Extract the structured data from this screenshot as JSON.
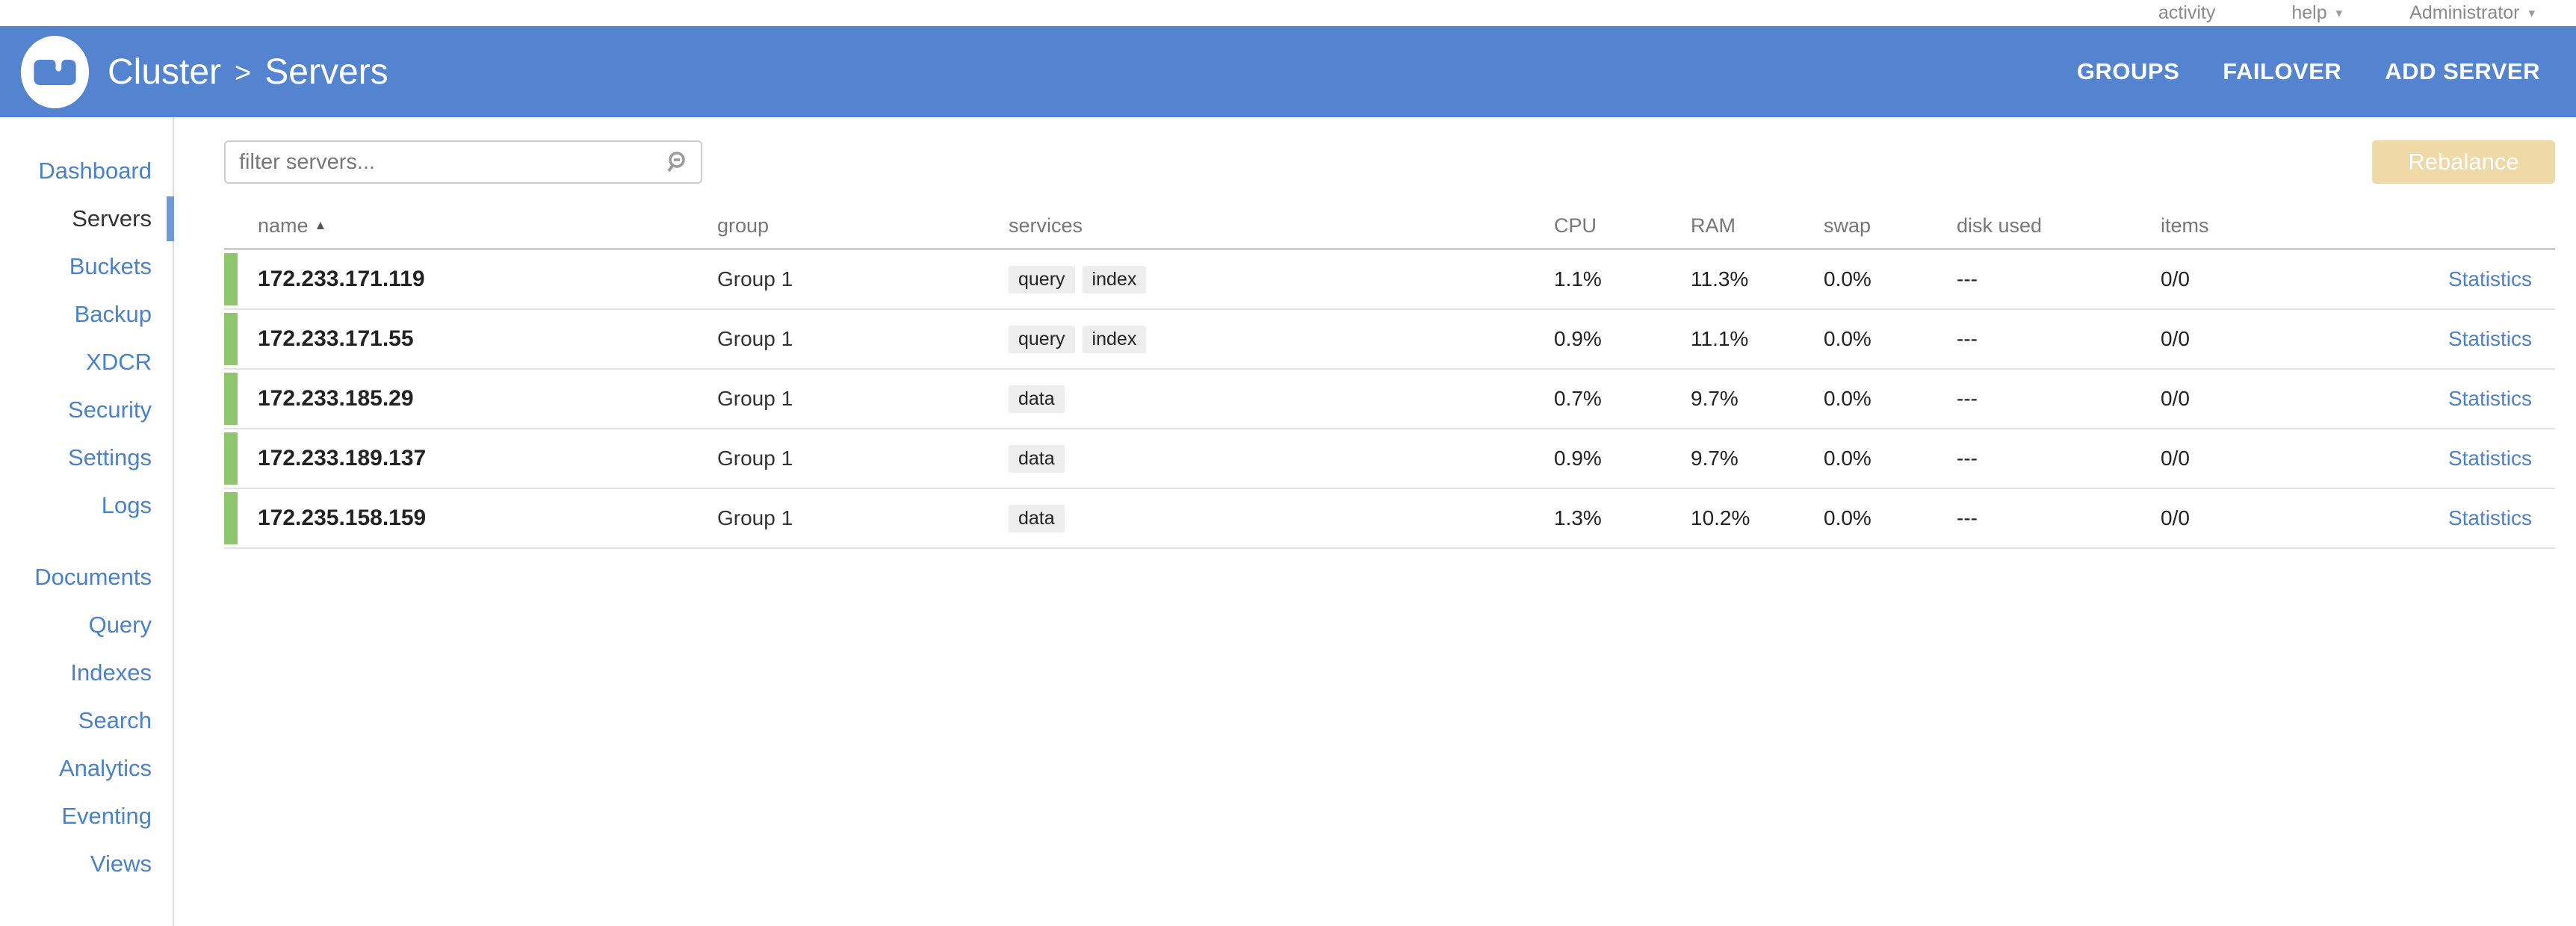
{
  "utility": {
    "items": [
      {
        "label": "activity",
        "caret": ""
      },
      {
        "label": "help",
        "caret": "▾"
      },
      {
        "label": "Administrator",
        "caret": "▾"
      }
    ]
  },
  "header": {
    "title_root": "Cluster",
    "title_separator": ">",
    "title_page": "Servers",
    "actions": [
      "GROUPS",
      "FAILOVER",
      "ADD SERVER"
    ]
  },
  "sidebar": {
    "active": "Servers",
    "primary": [
      "Dashboard",
      "Servers",
      "Buckets",
      "Backup",
      "XDCR",
      "Security",
      "Settings",
      "Logs"
    ],
    "secondary": [
      "Documents",
      "Query",
      "Indexes",
      "Search",
      "Analytics",
      "Eventing",
      "Views"
    ]
  },
  "toolbar": {
    "filter_placeholder": "filter servers...",
    "rebalance_label": "Rebalance"
  },
  "table": {
    "headers": {
      "name": "name",
      "sort_caret": "▲",
      "group": "group",
      "services": "services",
      "cpu": "CPU",
      "ram": "RAM",
      "swap": "swap",
      "disk_used": "disk used",
      "items": "items"
    },
    "rows": [
      {
        "name": "172.233.171.119",
        "group": "Group 1",
        "services": [
          "query",
          "index"
        ],
        "cpu": "1.1%",
        "ram": "11.3%",
        "swap": "0.0%",
        "disk_used": "---",
        "items": "0/0",
        "statistics": "Statistics"
      },
      {
        "name": "172.233.171.55",
        "group": "Group 1",
        "services": [
          "query",
          "index"
        ],
        "cpu": "0.9%",
        "ram": "11.1%",
        "swap": "0.0%",
        "disk_used": "---",
        "items": "0/0",
        "statistics": "Statistics"
      },
      {
        "name": "172.233.185.29",
        "group": "Group 1",
        "services": [
          "data"
        ],
        "cpu": "0.7%",
        "ram": "9.7%",
        "swap": "0.0%",
        "disk_used": "---",
        "items": "0/0",
        "statistics": "Statistics"
      },
      {
        "name": "172.233.189.137",
        "group": "Group 1",
        "services": [
          "data"
        ],
        "cpu": "0.9%",
        "ram": "9.7%",
        "swap": "0.0%",
        "disk_used": "---",
        "items": "0/0",
        "statistics": "Statistics"
      },
      {
        "name": "172.235.158.159",
        "group": "Group 1",
        "services": [
          "data"
        ],
        "cpu": "1.3%",
        "ram": "10.2%",
        "swap": "0.0%",
        "disk_used": "---",
        "items": "0/0",
        "statistics": "Statistics"
      }
    ]
  },
  "colors": {
    "header_blue": "#5484cf",
    "sidebar_link_blue": "#4a82c8",
    "active_indicator_blue": "#6f99d5",
    "healthy_green": "#8dc66f",
    "rebalance_disabled_bg": "#efd9a6",
    "badge_bg": "#ededed",
    "link_blue": "#4e82c6"
  }
}
